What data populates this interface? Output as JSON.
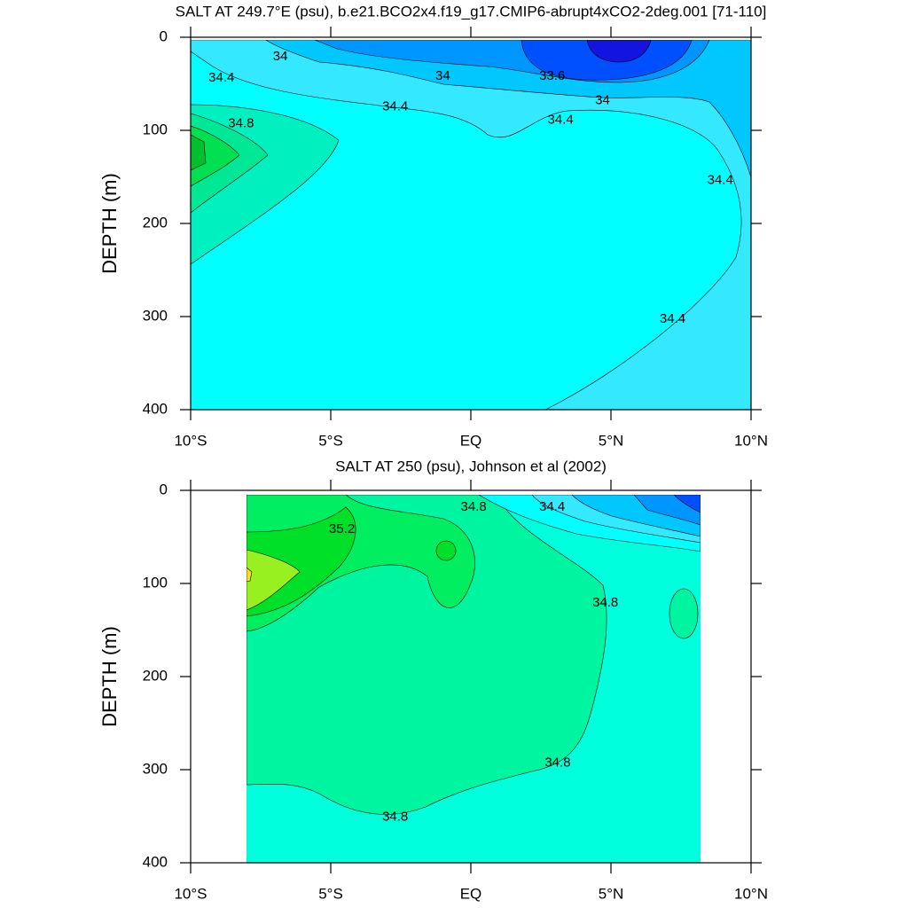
{
  "chart_data": [
    {
      "type": "contour",
      "title": "SALT AT 249.7°E (psu), b.e21.BCO2x4.f19_g17.CMIP6-abrupt4xCO2-2deg.001 [71-110]",
      "ylabel": "DEPTH (m)",
      "xlim": [
        -10,
        10
      ],
      "ylim": [
        400,
        0
      ],
      "xticks": [
        {
          "value": -10,
          "label": "10°S"
        },
        {
          "value": -5,
          "label": "5°S"
        },
        {
          "value": 0,
          "label": "EQ"
        },
        {
          "value": 5,
          "label": "5°N"
        },
        {
          "value": 10,
          "label": "10°N"
        }
      ],
      "yticks": [
        0,
        100,
        200,
        300,
        400
      ],
      "contour_labels": [
        {
          "level": 34,
          "x": -6.8,
          "y": 21
        },
        {
          "level": 34.4,
          "x": -8.9,
          "y": 44
        },
        {
          "level": 34.8,
          "x": -8.2,
          "y": 93
        },
        {
          "level": 34,
          "x": -1.0,
          "y": 42
        },
        {
          "level": 33.6,
          "x": 2.9,
          "y": 42
        },
        {
          "level": 34,
          "x": 4.7,
          "y": 68
        },
        {
          "level": 34.4,
          "x": -2.7,
          "y": 75
        },
        {
          "level": 34.4,
          "x": 3.2,
          "y": 89
        },
        {
          "level": 34.4,
          "x": 8.9,
          "y": 154
        },
        {
          "level": 34.4,
          "x": 7.2,
          "y": 303
        }
      ]
    },
    {
      "type": "contour",
      "title": "SALT AT 250 (psu), Johnson et al (2002)",
      "ylabel": "DEPTH (m)",
      "xlim": [
        -10,
        10
      ],
      "ylim": [
        400,
        0
      ],
      "xticks": [
        {
          "value": -10,
          "label": "10°S"
        },
        {
          "value": -5,
          "label": "5°S"
        },
        {
          "value": 0,
          "label": "EQ"
        },
        {
          "value": 5,
          "label": "5°N"
        },
        {
          "value": 10,
          "label": "10°N"
        }
      ],
      "yticks": [
        0,
        100,
        200,
        300,
        400
      ],
      "contour_labels": [
        {
          "level": 34.8,
          "x": 0.1,
          "y": 18
        },
        {
          "level": 34.4,
          "x": 2.9,
          "y": 18
        },
        {
          "level": 35.2,
          "x": -4.6,
          "y": 42
        },
        {
          "level": 34.8,
          "x": 4.8,
          "y": 121
        },
        {
          "level": 34.8,
          "x": 3.1,
          "y": 293
        },
        {
          "level": 34.8,
          "x": -2.7,
          "y": 351
        }
      ]
    }
  ]
}
